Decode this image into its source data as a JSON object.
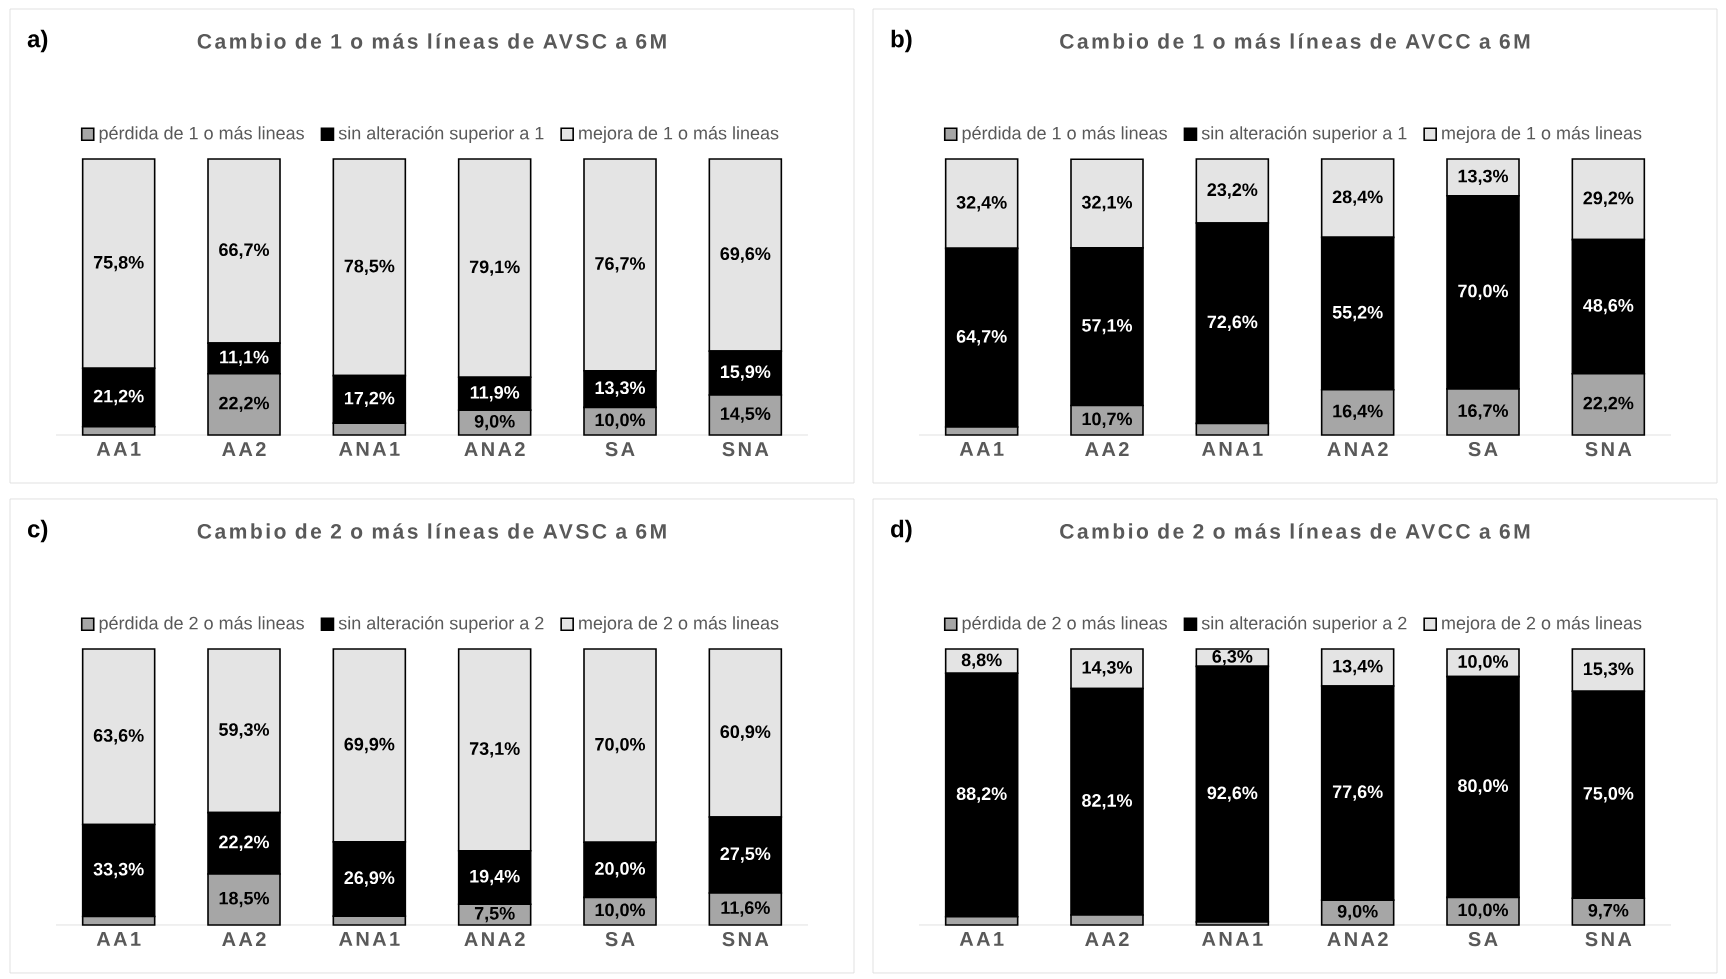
{
  "chart_data": [
    {
      "type": "bar",
      "stacked": true,
      "legend": "top",
      "title": "Cambio de 1 o más líneas de AVSC a 6M",
      "annotations": [
        "a)"
      ],
      "categories": [
        "AA1",
        "AA2",
        "ANA1",
        "ANA2",
        "SA",
        "SNA"
      ],
      "series": [
        {
          "name": "pérdida de 1 o más lineas",
          "color": "#a6a6a6",
          "values": [
            3.0,
            22.2,
            4.3,
            9.0,
            10.0,
            14.5
          ],
          "value_labels": [
            null,
            "22,2%",
            null,
            "9,0%",
            "10,0%",
            "14,5%"
          ]
        },
        {
          "name": "sin alteración superior a 1",
          "color": "#000000",
          "values": [
            21.2,
            11.1,
            17.2,
            11.9,
            13.3,
            15.9
          ],
          "value_labels": [
            "21,2%",
            "11,1%",
            "17,2%",
            "11,9%",
            "13,3%",
            "15,9%"
          ]
        },
        {
          "name": "mejora de 1 o más lineas",
          "color": "#e4e4e4",
          "values": [
            75.8,
            66.7,
            78.5,
            79.1,
            76.7,
            69.6
          ],
          "value_labels": [
            "75,8%",
            "66,7%",
            "78,5%",
            "79,1%",
            "76,7%",
            "69,6%"
          ]
        }
      ]
    },
    {
      "type": "bar",
      "stacked": true,
      "legend": "top",
      "title": "Cambio de 1 o más líneas de AVCC a 6M",
      "annotations": [
        "b)"
      ],
      "categories": [
        "AA1",
        "AA2",
        "ANA1",
        "ANA2",
        "SA",
        "SNA"
      ],
      "series": [
        {
          "name": "pérdida de 1 o más lineas",
          "color": "#a6a6a6",
          "values": [
            2.9,
            10.7,
            4.2,
            16.4,
            16.7,
            22.2
          ],
          "value_labels": [
            null,
            "10,7%",
            null,
            "16,4%",
            "16,7%",
            "22,2%"
          ]
        },
        {
          "name": "sin alteración superior a 1",
          "color": "#000000",
          "values": [
            64.7,
            57.1,
            72.6,
            55.2,
            70.0,
            48.6
          ],
          "value_labels": [
            "64,7%",
            "57,1%",
            "72,6%",
            "55,2%",
            "70,0%",
            "48,6%"
          ]
        },
        {
          "name": "mejora de 1 o más lineas",
          "color": "#e4e4e4",
          "values": [
            32.4,
            32.1,
            23.2,
            28.4,
            13.3,
            29.2
          ],
          "value_labels": [
            "32,4%",
            "32,1%",
            "23,2%",
            "28,4%",
            "13,3%",
            "29,2%"
          ]
        }
      ]
    },
    {
      "type": "bar",
      "stacked": true,
      "legend": "top",
      "title": "Cambio de 2 o más líneas de AVSC a 6M",
      "annotations": [
        "c)"
      ],
      "categories": [
        "AA1",
        "AA2",
        "ANA1",
        "ANA2",
        "SA",
        "SNA"
      ],
      "series": [
        {
          "name": "pérdida de 2 o más lineas",
          "color": "#a6a6a6",
          "values": [
            3.1,
            18.5,
            3.2,
            7.5,
            10.0,
            11.6
          ],
          "value_labels": [
            null,
            "18,5%",
            null,
            "7,5%",
            "10,0%",
            "11,6%"
          ]
        },
        {
          "name": "sin alteración superior a 2",
          "color": "#000000",
          "values": [
            33.3,
            22.2,
            26.9,
            19.4,
            20.0,
            27.5
          ],
          "value_labels": [
            "33,3%",
            "22,2%",
            "26,9%",
            "19,4%",
            "20,0%",
            "27,5%"
          ]
        },
        {
          "name": "mejora de 2 o más lineas",
          "color": "#e4e4e4",
          "values": [
            63.6,
            59.3,
            69.9,
            73.1,
            70.0,
            60.9
          ],
          "value_labels": [
            "63,6%",
            "59,3%",
            "69,9%",
            "73,1%",
            "70,0%",
            "60,9%"
          ]
        }
      ]
    },
    {
      "type": "bar",
      "stacked": true,
      "legend": "top",
      "title": "Cambio de 2 o más líneas de AVCC a 6M",
      "annotations": [
        "d)"
      ],
      "categories": [
        "AA1",
        "AA2",
        "ANA1",
        "ANA2",
        "SA",
        "SNA"
      ],
      "series": [
        {
          "name": "pérdida de 2 o más lineas",
          "color": "#a6a6a6",
          "values": [
            3.0,
            3.6,
            1.1,
            9.0,
            10.0,
            9.7
          ],
          "value_labels": [
            null,
            null,
            null,
            "9,0%",
            "10,0%",
            "9,7%"
          ]
        },
        {
          "name": "sin alteración superior a 2",
          "color": "#000000",
          "values": [
            88.2,
            82.1,
            92.6,
            77.6,
            80.0,
            75.0
          ],
          "value_labels": [
            "88,2%",
            "82,1%",
            "92,6%",
            "77,6%",
            "80,0%",
            "75,0%"
          ]
        },
        {
          "name": "mejora de 2 o más lineas",
          "color": "#e4e4e4",
          "values": [
            8.8,
            14.3,
            6.3,
            13.4,
            10.0,
            15.3
          ],
          "value_labels": [
            "8,8%",
            "14,3%",
            "6,3%",
            "13,4%",
            "10,0%",
            "15,3%"
          ]
        }
      ]
    }
  ]
}
